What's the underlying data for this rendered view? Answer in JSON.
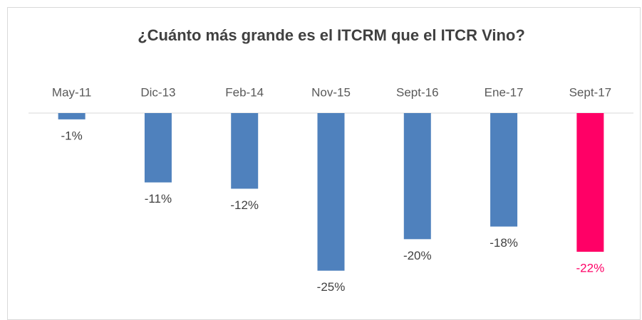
{
  "chart_data": {
    "type": "bar",
    "title": "¿Cuánto más grande es el ITCRM que el ITCR Vino?",
    "categories": [
      "May-11",
      "Dic-13",
      "Feb-14",
      "Nov-15",
      "Sept-16",
      "Ene-17",
      "Sept-17"
    ],
    "values": [
      -1,
      -11,
      -12,
      -25,
      -20,
      -18,
      -22
    ],
    "value_labels": [
      "-1%",
      "-11%",
      "-12%",
      "-25%",
      "-20%",
      "-18%",
      "-22%"
    ],
    "colors": [
      "#4f81bd",
      "#4f81bd",
      "#4f81bd",
      "#4f81bd",
      "#4f81bd",
      "#4f81bd",
      "#ff0066"
    ],
    "label_colors": [
      "#404040",
      "#404040",
      "#404040",
      "#404040",
      "#404040",
      "#404040",
      "#ff0066"
    ],
    "ylim": [
      -30,
      0
    ]
  }
}
